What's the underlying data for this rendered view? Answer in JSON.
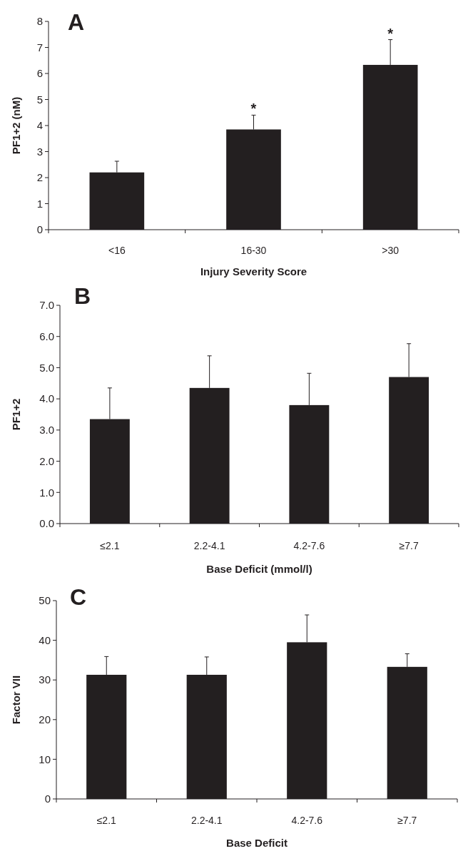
{
  "chart_data": [
    {
      "type": "bar",
      "title": "A",
      "xlabel": "Injury Severity Score",
      "ylabel": "PF1+2 (nM)",
      "categories": [
        "<16",
        "16-30",
        ">30"
      ],
      "values": [
        2.2,
        3.85,
        6.33
      ],
      "errors": [
        [
          2.2,
          2.63
        ],
        [
          3.85,
          4.4
        ],
        [
          6.33,
          7.3
        ]
      ],
      "color": "#231f20",
      "ylim": [
        0,
        8
      ],
      "yticks": [
        0,
        1,
        2,
        3,
        4,
        5,
        6,
        7,
        8
      ],
      "annotations": [
        "*",
        "*"
      ]
    },
    {
      "type": "bar",
      "title": "B",
      "xlabel": "Base Deficit (mmol/l)",
      "ylabel": "PF1+2",
      "categories": [
        "≤2.1",
        "2.2-4.1",
        "4.2-7.6",
        "≥7.7"
      ],
      "values": [
        3.35,
        4.35,
        3.8,
        4.7
      ],
      "errors": [
        [
          3.35,
          4.35
        ],
        [
          4.35,
          5.38
        ],
        [
          3.8,
          4.82
        ],
        [
          4.7,
          5.77
        ]
      ],
      "color": "#231f20",
      "ylim": [
        0,
        7
      ],
      "yticks": [
        {
          "value": 0,
          "label": "0.0"
        },
        {
          "value": 1,
          "label": "1.0"
        },
        {
          "value": 2,
          "label": "2.0"
        },
        {
          "value": 3,
          "label": "3.0"
        },
        {
          "value": 4,
          "label": "4.0"
        },
        {
          "value": 5,
          "label": "5.0"
        },
        {
          "value": 6,
          "label": "6.0"
        },
        {
          "value": 7,
          "label": "7.0"
        }
      ]
    },
    {
      "type": "bar",
      "title": "C",
      "xlabel": "Base Deficit",
      "ylabel": "Factor VII",
      "categories": [
        "≤2.1",
        "2.2-4.1",
        "4.2-7.6",
        "≥7.7"
      ],
      "values": [
        31.3,
        31.3,
        39.5,
        33.3
      ],
      "errors": [
        [
          31.3,
          35.9
        ],
        [
          31.3,
          35.8
        ],
        [
          39.5,
          46.4
        ],
        [
          33.3,
          36.6
        ]
      ],
      "color": "#231f20",
      "ylim": [
        0,
        50
      ],
      "yticks": [
        0,
        10,
        20,
        30,
        40,
        50
      ]
    }
  ]
}
